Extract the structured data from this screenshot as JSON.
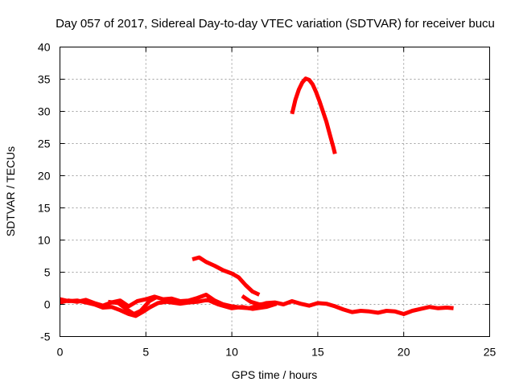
{
  "chart_data": {
    "type": "scatter",
    "title": "Day 057 of 2017, Sidereal Day-to-day VTEC variation (SDTVAR) for receiver bucu",
    "xlabel": "GPS time / hours",
    "ylabel": "SDTVAR / TECUs",
    "xlim": [
      0,
      25
    ],
    "ylim": [
      -5,
      40
    ],
    "xticks": [
      "0",
      "5",
      "10",
      "15",
      "20",
      "25"
    ],
    "yticks": [
      "-5",
      "0",
      "5",
      "10",
      "15",
      "20",
      "25",
      "30",
      "35",
      "40"
    ],
    "grid": true,
    "series": [
      {
        "name": "SDTVAR",
        "color": "#ff0000",
        "segments": [
          [
            [
              0,
              0.3
            ],
            [
              0.5,
              0.6
            ],
            [
              1,
              0.4
            ],
            [
              1.5,
              0.7
            ],
            [
              2,
              0.2
            ],
            [
              2.5,
              -0.2
            ],
            [
              3,
              0.3
            ],
            [
              3.5,
              0.6
            ],
            [
              4,
              -0.3
            ],
            [
              4.5,
              0.5
            ],
            [
              5,
              0.8
            ],
            [
              5.5,
              1.2
            ],
            [
              6,
              0.8
            ],
            [
              6.5,
              0.9
            ],
            [
              7,
              0.5
            ],
            [
              7.5,
              0.6
            ],
            [
              8,
              1.0
            ],
            [
              8.5,
              1.5
            ],
            [
              9,
              0.6
            ],
            [
              9.5,
              0.0
            ],
            [
              10,
              -0.3
            ],
            [
              10.5,
              -0.5
            ],
            [
              11,
              -0.6
            ],
            [
              11.5,
              -0.2
            ],
            [
              12,
              0.2
            ],
            [
              12.5,
              0.3
            ],
            [
              13,
              0.0
            ],
            [
              13.5,
              0.5
            ],
            [
              14,
              0.1
            ],
            [
              14.5,
              -0.2
            ],
            [
              15,
              0.2
            ],
            [
              15.5,
              0.1
            ],
            [
              16,
              -0.3
            ],
            [
              16.5,
              -0.8
            ],
            [
              17,
              -1.2
            ],
            [
              17.5,
              -1.0
            ],
            [
              18,
              -1.1
            ],
            [
              18.5,
              -1.3
            ],
            [
              19,
              -1.0
            ],
            [
              19.5,
              -1.1
            ],
            [
              20,
              -1.5
            ],
            [
              20.5,
              -1.0
            ],
            [
              21,
              -0.7
            ],
            [
              21.5,
              -0.4
            ],
            [
              22,
              -0.6
            ],
            [
              22.5,
              -0.5
            ],
            [
              22.9,
              -0.6
            ]
          ],
          [
            [
              0,
              0.8
            ],
            [
              0.5,
              0.5
            ],
            [
              1,
              0.6
            ],
            [
              1.5,
              0.3
            ],
            [
              2,
              0.0
            ],
            [
              2.5,
              -0.5
            ],
            [
              3,
              -0.4
            ],
            [
              3.5,
              -0.9
            ],
            [
              4,
              -1.5
            ],
            [
              4.4,
              -1.8
            ],
            [
              4.8,
              -1.2
            ],
            [
              5.2,
              -0.5
            ],
            [
              5.7,
              0.2
            ],
            [
              6.2,
              0.4
            ],
            [
              7,
              0.1
            ],
            [
              7.5,
              0.3
            ],
            [
              8,
              0.4
            ],
            [
              8.6,
              0.7
            ],
            [
              9.2,
              0.0
            ],
            [
              10,
              -0.6
            ],
            [
              10.6,
              -0.4
            ],
            [
              11.2,
              -0.7
            ],
            [
              12,
              -0.4
            ],
            [
              12.6,
              0.1
            ]
          ],
          [
            [
              2.8,
              0.4
            ],
            [
              3.4,
              0.2
            ],
            [
              3.9,
              -0.8
            ],
            [
              4.3,
              -1.5
            ],
            [
              4.7,
              -1.0
            ],
            [
              5.2,
              0.5
            ],
            [
              5.6,
              1.1
            ]
          ],
          [
            [
              7.7,
              7.0
            ],
            [
              8.1,
              7.3
            ],
            [
              8.5,
              6.6
            ],
            [
              9,
              6.0
            ],
            [
              9.5,
              5.3
            ],
            [
              10,
              4.8
            ],
            [
              10.4,
              4.2
            ],
            [
              10.8,
              3.0
            ],
            [
              11.2,
              2.0
            ],
            [
              11.6,
              1.5
            ]
          ],
          [
            [
              10.6,
              1.3
            ],
            [
              11.1,
              0.4
            ],
            [
              11.6,
              0.0
            ],
            [
              12.2,
              0.1
            ]
          ],
          [
            [
              13.5,
              29.6
            ],
            [
              13.7,
              31.8
            ],
            [
              13.9,
              33.4
            ],
            [
              14.1,
              34.5
            ],
            [
              14.3,
              35.1
            ],
            [
              14.5,
              34.9
            ],
            [
              14.7,
              34.2
            ],
            [
              14.9,
              33.0
            ],
            [
              15.1,
              31.6
            ],
            [
              15.3,
              30.0
            ],
            [
              15.5,
              28.4
            ],
            [
              15.7,
              26.4
            ],
            [
              15.9,
              24.5
            ],
            [
              16.0,
              23.4
            ]
          ]
        ]
      }
    ]
  }
}
